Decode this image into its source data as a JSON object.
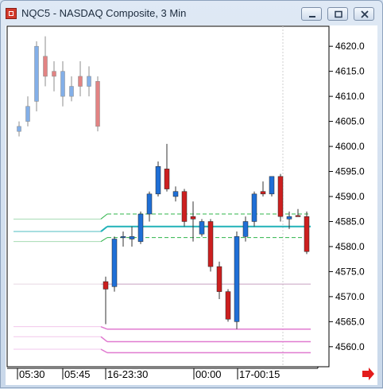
{
  "window": {
    "title": "NQC5 - NASDAQ Composite, 3 Min",
    "icon": "chart-app-icon",
    "controls": [
      "minimize-icon",
      "maximize-icon",
      "close-icon"
    ]
  },
  "chart_data": {
    "type": "candlestick",
    "ylim": [
      4556,
      4624
    ],
    "y_ticks": [
      "4620.0",
      "4615.0",
      "4610.0",
      "4605.0",
      "4600.0",
      "4595.0",
      "4590.0",
      "4585.0",
      "4580.0",
      "4575.0",
      "4570.0",
      "4565.0",
      "4560.0"
    ],
    "x_ticks": [
      "05:30",
      "05:45",
      "16-23:30",
      "00:00",
      "17-00:15"
    ],
    "colors": {
      "up": "#1f6fd6",
      "down": "#cc1f1f",
      "faded_up": "#a9c6ee",
      "faded_down": "#eba9a9",
      "level": "#20b2b8",
      "band": "#2fb44a",
      "low": "#e07ad0",
      "mid": "#c8a0c0"
    },
    "prior_session_candles": [
      {
        "o": 4603,
        "h": 4605,
        "l": 4602,
        "c": 4604,
        "dir": "up"
      },
      {
        "o": 4605,
        "h": 4610,
        "l": 4604,
        "c": 4608,
        "dir": "up"
      },
      {
        "o": 4609,
        "h": 4621,
        "l": 4607,
        "c": 4620,
        "dir": "up"
      },
      {
        "o": 4618,
        "h": 4622,
        "l": 4612,
        "c": 4614,
        "dir": "down"
      },
      {
        "o": 4614,
        "h": 4617,
        "l": 4611,
        "c": 4615,
        "dir": "down"
      },
      {
        "o": 4610,
        "h": 4617,
        "l": 4608,
        "c": 4615,
        "dir": "up"
      },
      {
        "o": 4610,
        "h": 4614,
        "l": 4609,
        "c": 4612,
        "dir": "up"
      },
      {
        "o": 4612,
        "h": 4617,
        "l": 4610,
        "c": 4614,
        "dir": "down"
      },
      {
        "o": 4614,
        "h": 4616,
        "l": 4610,
        "c": 4612,
        "dir": "up"
      },
      {
        "o": 4613,
        "h": 4614,
        "l": 4603,
        "c": 4604,
        "dir": "down"
      }
    ],
    "candles": [
      {
        "o": 4573,
        "h": 4574,
        "l": 4564.5,
        "c": 4571.5,
        "dir": "down"
      },
      {
        "o": 4572,
        "h": 4582,
        "l": 4571,
        "c": 4581.5,
        "dir": "up"
      },
      {
        "o": 4582,
        "h": 4583,
        "l": 4580,
        "c": 4581.8,
        "dir": "up"
      },
      {
        "o": 4581.5,
        "h": 4584,
        "l": 4580,
        "c": 4582,
        "dir": "up"
      },
      {
        "o": 4581,
        "h": 4587,
        "l": 4580.5,
        "c": 4586.5,
        "dir": "up"
      },
      {
        "o": 4586.5,
        "h": 4591,
        "l": 4585,
        "c": 4590.5,
        "dir": "up"
      },
      {
        "o": 4590.5,
        "h": 4597,
        "l": 4590,
        "c": 4596,
        "dir": "up"
      },
      {
        "o": 4595.5,
        "h": 4600.5,
        "l": 4591,
        "c": 4591.5,
        "dir": "down"
      },
      {
        "o": 4590,
        "h": 4592,
        "l": 4589,
        "c": 4591,
        "dir": "up"
      },
      {
        "o": 4591,
        "h": 4591.5,
        "l": 4584,
        "c": 4585,
        "dir": "down"
      },
      {
        "o": 4585.5,
        "h": 4589,
        "l": 4581,
        "c": 4586,
        "dir": "down"
      },
      {
        "o": 4582.5,
        "h": 4585.5,
        "l": 4582,
        "c": 4585,
        "dir": "up"
      },
      {
        "o": 4585,
        "h": 4585.5,
        "l": 4575,
        "c": 4576,
        "dir": "down"
      },
      {
        "o": 4576,
        "h": 4577,
        "l": 4569.5,
        "c": 4571,
        "dir": "down"
      },
      {
        "o": 4571,
        "h": 4571.5,
        "l": 4565,
        "c": 4565.5,
        "dir": "down"
      },
      {
        "o": 4565,
        "h": 4583,
        "l": 4563.5,
        "c": 4582,
        "dir": "up"
      },
      {
        "o": 4582,
        "h": 4586,
        "l": 4581,
        "c": 4585,
        "dir": "up"
      },
      {
        "o": 4585,
        "h": 4591,
        "l": 4584,
        "c": 4590.5,
        "dir": "up"
      },
      {
        "o": 4591,
        "h": 4593,
        "l": 4590,
        "c": 4590.5,
        "dir": "down"
      },
      {
        "o": 4590.5,
        "h": 4594,
        "l": 4590,
        "c": 4594,
        "dir": "up"
      },
      {
        "o": 4594,
        "h": 4594.5,
        "l": 4585,
        "c": 4586,
        "dir": "down"
      },
      {
        "o": 4586,
        "h": 4587,
        "l": 4583.5,
        "c": 4585.5,
        "dir": "up"
      },
      {
        "o": 4586,
        "h": 4587.5,
        "l": 4586,
        "c": 4586.2,
        "dir": "down"
      },
      {
        "o": 4586,
        "h": 4587,
        "l": 4578.5,
        "c": 4579,
        "dir": "down"
      }
    ],
    "levels": [
      {
        "name": "pivot",
        "prior": 4583,
        "current": 4584,
        "style": "solid"
      },
      {
        "name": "upper-band",
        "prior": 4585.5,
        "current": 4586.5,
        "style": "dashed"
      },
      {
        "name": "lower-band",
        "prior": 4581,
        "current": 4581.8,
        "style": "dashed"
      },
      {
        "name": "mid-line",
        "prior": 4572.5,
        "current": 4572.5,
        "style": "thin"
      },
      {
        "name": "low-1",
        "prior": 4564,
        "current": 4563.5,
        "style": "solid"
      },
      {
        "name": "low-2",
        "prior": 4562,
        "current": 4561,
        "style": "solid"
      },
      {
        "name": "low-3",
        "prior": 4559.5,
        "current": 4558.8,
        "style": "solid"
      }
    ],
    "scroll_arrow": "right-arrow-icon"
  }
}
